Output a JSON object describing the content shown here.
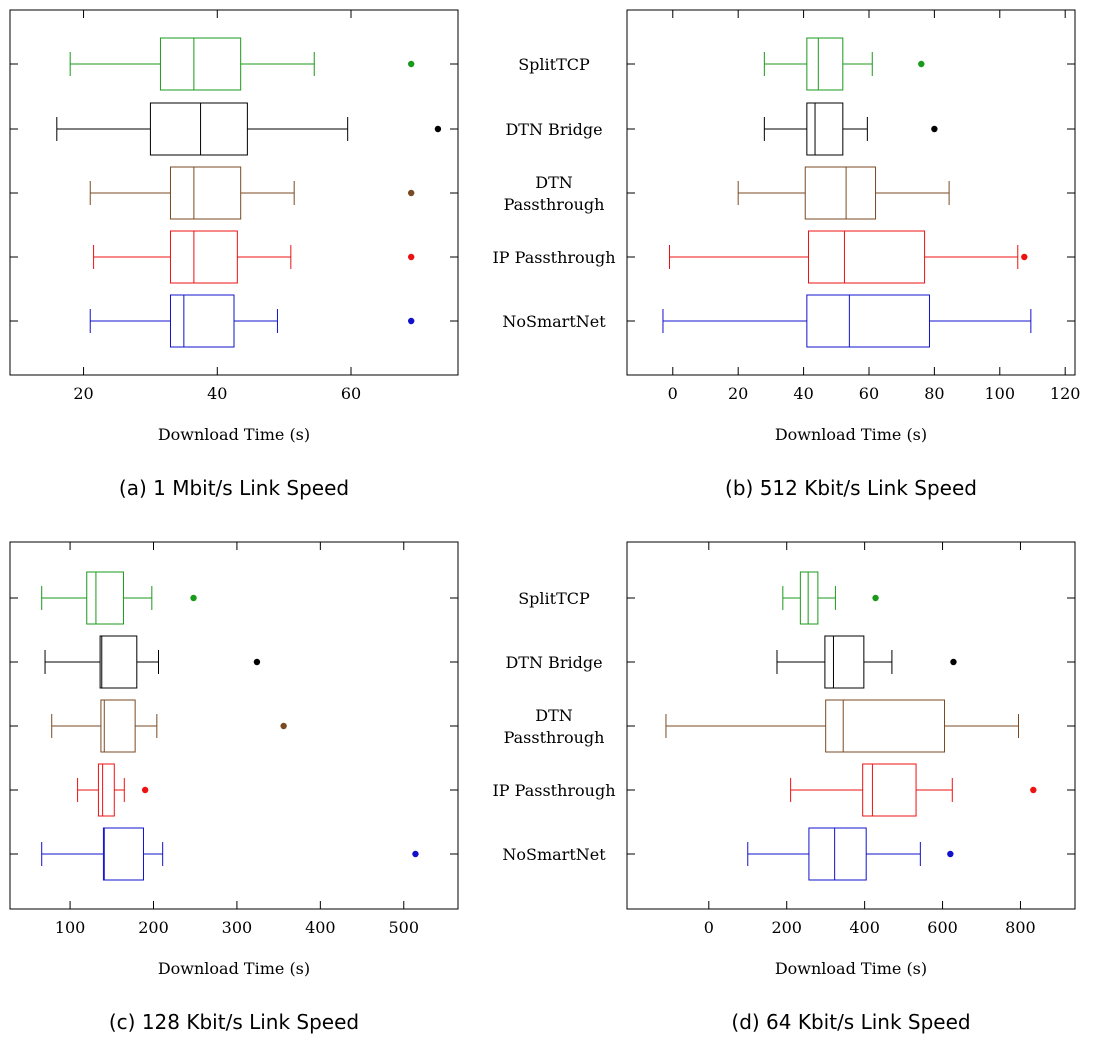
{
  "categories": [
    "SplitTCP",
    "DTN Bridge",
    "DTN Passthrough",
    "IP Passthrough",
    "NoSmartNet"
  ],
  "category_label_lines": [
    [
      "SplitTCP"
    ],
    [
      "DTN Bridge"
    ],
    [
      "DTN",
      "Passthrough"
    ],
    [
      "IP Passthrough"
    ],
    [
      "NoSmartNet"
    ]
  ],
  "colors": {
    "SplitTCP": "#1a9a1a",
    "DTN Bridge": "#000000",
    "DTN Passthrough": "#7a4a22",
    "IP Passthrough": "#ee1111",
    "NoSmartNet": "#1111cc"
  },
  "chart_data": [
    {
      "type": "boxplot",
      "caption": "(a) 1 Mbit/s Link Speed",
      "xlabel": "Download Time (s)",
      "xlim": [
        9,
        76
      ],
      "xticks": [
        20,
        40,
        60
      ],
      "grid": false,
      "series": [
        {
          "name": "SplitTCP",
          "whisker_low": 18,
          "q1": 31.5,
          "median": 36.5,
          "q3": 43.5,
          "whisker_high": 54.5,
          "outliers": [
            69
          ]
        },
        {
          "name": "DTN Bridge",
          "whisker_low": 16,
          "q1": 30,
          "median": 37.5,
          "q3": 44.5,
          "whisker_high": 59.5,
          "outliers": [
            73
          ]
        },
        {
          "name": "DTN Passthrough",
          "whisker_low": 21,
          "q1": 33,
          "median": 36.5,
          "q3": 43.5,
          "whisker_high": 51.5,
          "outliers": [
            69
          ]
        },
        {
          "name": "IP Passthrough",
          "whisker_low": 21.5,
          "q1": 33,
          "median": 36.5,
          "q3": 43,
          "whisker_high": 51,
          "outliers": [
            69
          ]
        },
        {
          "name": "NoSmartNet",
          "whisker_low": 21,
          "q1": 33,
          "median": 35,
          "q3": 42.5,
          "whisker_high": 49,
          "outliers": [
            69
          ]
        }
      ]
    },
    {
      "type": "boxplot",
      "caption": "(b) 512 Kbit/s Link Speed",
      "xlabel": "Download Time (s)",
      "xlim": [
        -14,
        123
      ],
      "xticks": [
        0,
        20,
        40,
        60,
        80,
        100,
        120
      ],
      "grid": false,
      "series": [
        {
          "name": "SplitTCP",
          "whisker_low": 28,
          "q1": 41,
          "median": 44.5,
          "q3": 52,
          "whisker_high": 61,
          "outliers": [
            76
          ]
        },
        {
          "name": "DTN Bridge",
          "whisker_low": 28,
          "q1": 41,
          "median": 43.5,
          "q3": 52,
          "whisker_high": 59.5,
          "outliers": [
            80
          ]
        },
        {
          "name": "DTN Passthrough",
          "whisker_low": 20,
          "q1": 40.5,
          "median": 53,
          "q3": 62,
          "whisker_high": 84.5,
          "outliers": []
        },
        {
          "name": "IP Passthrough",
          "whisker_low": -1,
          "q1": 41.5,
          "median": 52.5,
          "q3": 77,
          "whisker_high": 105.5,
          "outliers": [
            107.5
          ]
        },
        {
          "name": "NoSmartNet",
          "whisker_low": -3,
          "q1": 41,
          "median": 54,
          "q3": 78.5,
          "whisker_high": 109.5,
          "outliers": []
        }
      ]
    },
    {
      "type": "boxplot",
      "caption": "(c) 128 Kbit/s Link Speed",
      "xlabel": "Download Time (s)",
      "xlim": [
        28,
        565
      ],
      "xticks": [
        100,
        200,
        300,
        400,
        500
      ],
      "grid": false,
      "series": [
        {
          "name": "SplitTCP",
          "whisker_low": 66,
          "q1": 120,
          "median": 131,
          "q3": 164,
          "whisker_high": 198,
          "outliers": [
            248
          ]
        },
        {
          "name": "DTN Bridge",
          "whisker_low": 70,
          "q1": 136,
          "median": 138,
          "q3": 180,
          "whisker_high": 206,
          "outliers": [
            324
          ]
        },
        {
          "name": "DTN Passthrough",
          "whisker_low": 78,
          "q1": 137,
          "median": 141,
          "q3": 178,
          "whisker_high": 204,
          "outliers": [
            356
          ]
        },
        {
          "name": "IP Passthrough",
          "whisker_low": 109,
          "q1": 134,
          "median": 139,
          "q3": 153,
          "whisker_high": 165,
          "outliers": [
            190
          ]
        },
        {
          "name": "NoSmartNet",
          "whisker_low": 66,
          "q1": 140,
          "median": 141,
          "q3": 188,
          "whisker_high": 211,
          "outliers": [
            514
          ]
        }
      ]
    },
    {
      "type": "boxplot",
      "caption": "(d) 64 Kbit/s Link Speed",
      "xlabel": "Download Time (s)",
      "xlim": [
        -210,
        940
      ],
      "xticks": [
        0,
        200,
        400,
        600,
        800
      ],
      "grid": false,
      "series": [
        {
          "name": "SplitTCP",
          "whisker_low": 190,
          "q1": 235,
          "median": 255,
          "q3": 280,
          "whisker_high": 325,
          "outliers": [
            428
          ]
        },
        {
          "name": "DTN Bridge",
          "whisker_low": 175,
          "q1": 298,
          "median": 320,
          "q3": 398,
          "whisker_high": 470,
          "outliers": [
            628
          ]
        },
        {
          "name": "DTN Passthrough",
          "whisker_low": -110,
          "q1": 300,
          "median": 345,
          "q3": 605,
          "whisker_high": 795,
          "outliers": []
        },
        {
          "name": "IP Passthrough",
          "whisker_low": 210,
          "q1": 395,
          "median": 420,
          "q3": 532,
          "whisker_high": 625,
          "outliers": [
            833
          ]
        },
        {
          "name": "NoSmartNet",
          "whisker_low": 100,
          "q1": 257,
          "median": 323,
          "q3": 404,
          "whisker_high": 543,
          "outliers": [
            620
          ]
        }
      ]
    }
  ]
}
